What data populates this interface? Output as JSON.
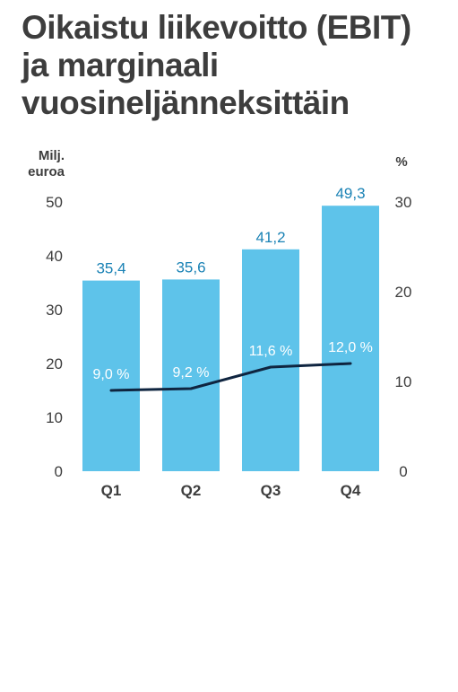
{
  "title_lines": [
    "Oikaistu liikevoitto (EBIT)",
    "ja marginaali",
    "vuosineljänneksittäin"
  ],
  "colors": {
    "bar": "#5ec3ea",
    "line": "#0f2540",
    "bar_label": "#1a82b5",
    "text": "#3d3d3d"
  },
  "chart_data": {
    "type": "bar",
    "categories": [
      "Q1",
      "Q2",
      "Q3",
      "Q4"
    ],
    "series": [
      {
        "type": "bar",
        "axis": "left",
        "values": [
          35.4,
          35.6,
          41.2,
          49.3
        ],
        "labels": [
          "35,4",
          "35,6",
          "41,2",
          "49,3"
        ]
      },
      {
        "type": "line",
        "axis": "right",
        "values": [
          9.0,
          9.2,
          11.6,
          12.0
        ],
        "labels": [
          "9,0 %",
          "9,2 %",
          "11,6 %",
          "12,0 %"
        ]
      }
    ],
    "ylabel_left": [
      "Milj.",
      "euroa"
    ],
    "ylabel_right": "%",
    "ylim_left": [
      0,
      50
    ],
    "ylim_right": [
      0,
      30
    ],
    "yticks_left": [
      "0",
      "10",
      "20",
      "30",
      "40",
      "50"
    ],
    "yticks_right": [
      "0",
      "10",
      "20",
      "30"
    ],
    "grid": false
  }
}
